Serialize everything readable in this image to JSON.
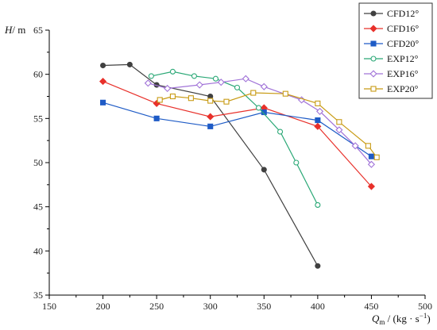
{
  "chart_data": {
    "type": "line",
    "xlabel": "Qm / (kg · s⁻¹)",
    "ylabel": "H/ m",
    "xlabel_parts": {
      "var": "Q",
      "sub": "m",
      "unit": " / (kg · s",
      "sup": "−1",
      "close": ")"
    },
    "ylabel_parts": {
      "var": "H",
      "unit": "/ m"
    },
    "xlim": [
      150,
      500
    ],
    "ylim": [
      35,
      65
    ],
    "xticks": [
      150,
      200,
      250,
      300,
      350,
      400,
      450,
      500
    ],
    "yticks": [
      35,
      40,
      45,
      50,
      55,
      60,
      65
    ],
    "legend_position": "top-right",
    "series": [
      {
        "name": "CFD12°",
        "color": "#404040",
        "marker": "circle-filled",
        "x": [
          200,
          225,
          250,
          300,
          350,
          400
        ],
        "y": [
          61.0,
          61.1,
          58.8,
          57.5,
          49.2,
          38.3
        ]
      },
      {
        "name": "CFD16°",
        "color": "#e8302a",
        "marker": "diamond-filled",
        "x": [
          200,
          250,
          300,
          350,
          400,
          450
        ],
        "y": [
          59.2,
          56.7,
          55.2,
          56.2,
          54.1,
          47.3
        ]
      },
      {
        "name": "CFD20°",
        "color": "#1e5bc6",
        "marker": "square-filled",
        "x": [
          200,
          250,
          300,
          350,
          400,
          450
        ],
        "y": [
          56.8,
          55.0,
          54.1,
          55.7,
          54.8,
          50.7
        ]
      },
      {
        "name": "EXP12°",
        "color": "#2aa876",
        "marker": "circle-open",
        "x": [
          245,
          265,
          285,
          305,
          325,
          345,
          365,
          380,
          400
        ],
        "y": [
          59.8,
          60.3,
          59.8,
          59.5,
          58.5,
          56.2,
          53.5,
          50.0,
          45.2
        ]
      },
      {
        "name": "EXP16°",
        "color": "#a173d8",
        "marker": "diamond-open",
        "x": [
          242,
          260,
          290,
          310,
          333,
          350,
          385,
          402,
          420,
          435,
          450
        ],
        "y": [
          59.0,
          58.4,
          58.8,
          59.1,
          59.5,
          58.6,
          57.1,
          55.8,
          53.7,
          51.9,
          49.8
        ]
      },
      {
        "name": "EXP20°",
        "color": "#c89b14",
        "marker": "square-open",
        "x": [
          253,
          265,
          282,
          300,
          315,
          340,
          370,
          400,
          420,
          447,
          455
        ],
        "y": [
          57.1,
          57.5,
          57.3,
          57.0,
          56.9,
          57.9,
          57.8,
          56.7,
          54.6,
          51.9,
          50.6
        ]
      }
    ]
  }
}
